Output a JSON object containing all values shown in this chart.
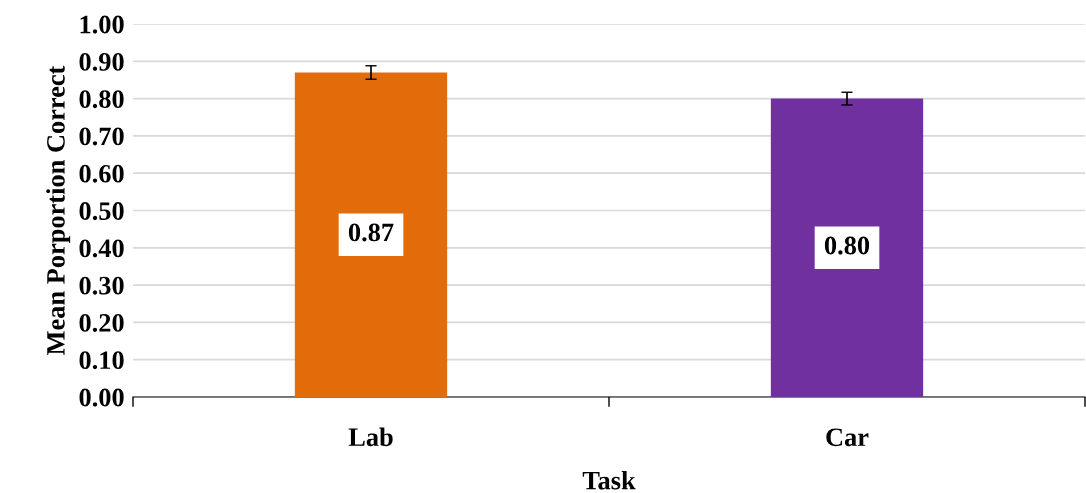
{
  "chart_data": {
    "type": "bar",
    "xlabel": "Task",
    "ylabel": "Mean Porportion Correct",
    "categories": [
      "Lab",
      "Car"
    ],
    "values": [
      0.87,
      0.8
    ],
    "colors": [
      "#e36c0a",
      "#7030a0"
    ],
    "errors": [
      0.018,
      0.017
    ],
    "value_labels": [
      "0.87",
      "0.80"
    ],
    "ylim": [
      0,
      1
    ],
    "yticks": [
      {
        "value": 0,
        "label": "0.00"
      },
      {
        "value": 0.1,
        "label": "0.10"
      },
      {
        "value": 0.2,
        "label": "0.20"
      },
      {
        "value": 0.3,
        "label": "0.30"
      },
      {
        "value": 0.4,
        "label": "0.40"
      },
      {
        "value": 0.5,
        "label": "0.50"
      },
      {
        "value": 0.6,
        "label": "0.60"
      },
      {
        "value": 0.7,
        "label": "0.70"
      },
      {
        "value": 0.8,
        "label": "0.80"
      },
      {
        "value": 0.9,
        "label": "0.90"
      },
      {
        "value": 1.0,
        "label": "1.00"
      }
    ],
    "grid": "y"
  }
}
